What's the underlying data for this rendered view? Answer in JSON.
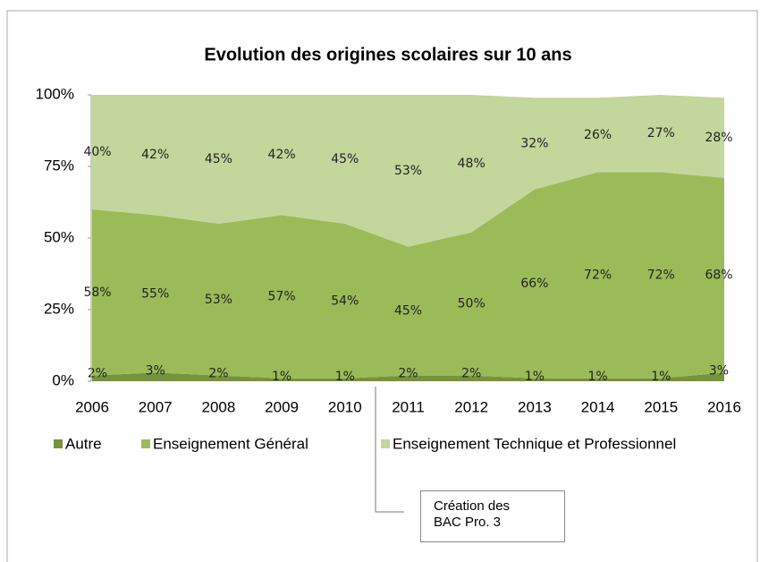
{
  "chart_data": {
    "type": "stacked_area",
    "title": "Evolution des origines scolaires sur 10 ans",
    "categories": [
      "2006",
      "2007",
      "2008",
      "2009",
      "2010",
      "2011",
      "2012",
      "2013",
      "2014",
      "2015",
      "2016"
    ],
    "series": [
      {
        "name": "Autre",
        "color": "#76923c",
        "values": [
          2,
          3,
          2,
          1,
          1,
          2,
          2,
          1,
          1,
          1,
          3
        ],
        "value_labels": [
          "2%",
          "3%",
          "2%",
          "1%",
          "1%",
          "2%",
          "2%",
          "1%",
          "1%",
          "1%",
          "3%"
        ]
      },
      {
        "name": "Enseignement Général",
        "color": "#9bbb59",
        "values": [
          58,
          55,
          53,
          57,
          54,
          45,
          50,
          66,
          72,
          72,
          68
        ],
        "value_labels": [
          "58%",
          "55%",
          "53%",
          "57%",
          "54%",
          "45%",
          "50%",
          "66%",
          "72%",
          "72%",
          "68%"
        ]
      },
      {
        "name": "Enseignement Technique et Professionnel",
        "color": "#c3d69b",
        "values": [
          40,
          42,
          45,
          42,
          45,
          53,
          48,
          32,
          26,
          27,
          28
        ],
        "value_labels": [
          "40%",
          "42%",
          "45%",
          "42%",
          "45%",
          "53%",
          "48%",
          "32%",
          "26%",
          "27%",
          "28%"
        ]
      }
    ],
    "ylim": [
      0,
      100
    ],
    "yticks": [
      {
        "value": 0,
        "label": "0%"
      },
      {
        "value": 25,
        "label": "25%"
      },
      {
        "value": 50,
        "label": "50%"
      },
      {
        "value": 75,
        "label": "75%"
      },
      {
        "value": 100,
        "label": "100%"
      }
    ],
    "legend": "bottom",
    "annotation": "Création des BAC Pro. 3"
  }
}
